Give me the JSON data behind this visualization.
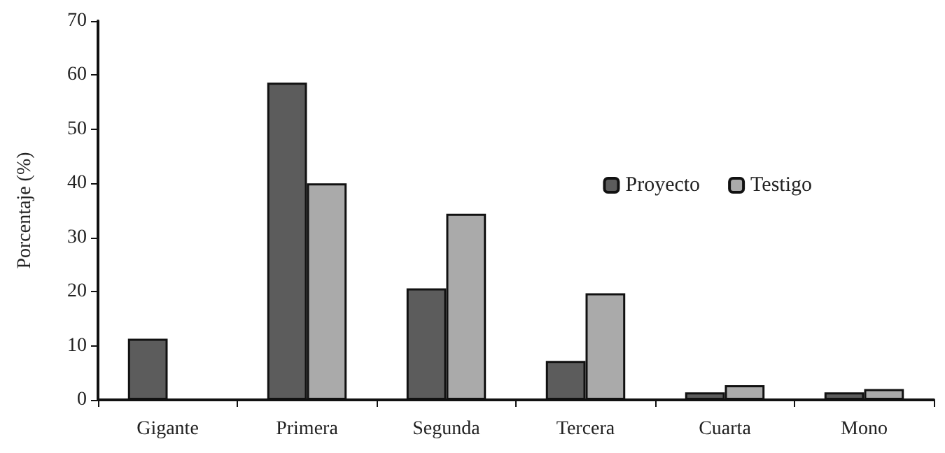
{
  "chart_data": {
    "type": "bar",
    "ylabel": "Porcentaje (%)",
    "categories": [
      "Gigante",
      "Primera",
      "Segunda",
      "Tercera",
      "Cuarta",
      "Mono"
    ],
    "series": [
      {
        "name": "Proyecto",
        "color": "#5c5c5c",
        "values": [
          11.3,
          58.6,
          20.6,
          7.2,
          1.4,
          1.4
        ]
      },
      {
        "name": "Testigo",
        "color": "#aaaaaa",
        "values": [
          null,
          40,
          34.4,
          19.7,
          2.7,
          2.0
        ]
      }
    ],
    "ylim": [
      0,
      70
    ],
    "yticks": [
      0,
      10,
      20,
      30,
      40,
      50,
      60,
      70
    ],
    "grid": false,
    "legend": "right"
  }
}
